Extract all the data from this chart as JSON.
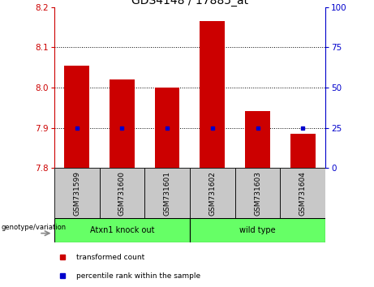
{
  "title": "GDS4148 / 17885_at",
  "samples": [
    "GSM731599",
    "GSM731600",
    "GSM731601",
    "GSM731602",
    "GSM731603",
    "GSM731604"
  ],
  "transformed_counts": [
    8.055,
    8.02,
    8.0,
    8.165,
    7.942,
    7.885
  ],
  "percentile_ranks": [
    25,
    25,
    25,
    25,
    25,
    25
  ],
  "bar_base": 7.8,
  "ylim_left": [
    7.8,
    8.2
  ],
  "ylim_right": [
    0,
    100
  ],
  "yticks_left": [
    7.8,
    7.9,
    8.0,
    8.1,
    8.2
  ],
  "yticks_right": [
    0,
    25,
    50,
    75,
    100
  ],
  "bar_color": "#CC0000",
  "percentile_color": "#0000CC",
  "title_fontsize": 10,
  "tick_fontsize": 7.5,
  "label_color_left": "#CC0000",
  "label_color_right": "#0000CC",
  "legend_items": [
    {
      "label": "transformed count",
      "color": "#CC0000"
    },
    {
      "label": "percentile rank within the sample",
      "color": "#0000CC"
    }
  ],
  "group_label": "genotype/variation",
  "sample_box_color": "#C8C8C8",
  "group1_label": "Atxn1 knock out",
  "group2_label": "wild type",
  "group_color": "#66FF66"
}
